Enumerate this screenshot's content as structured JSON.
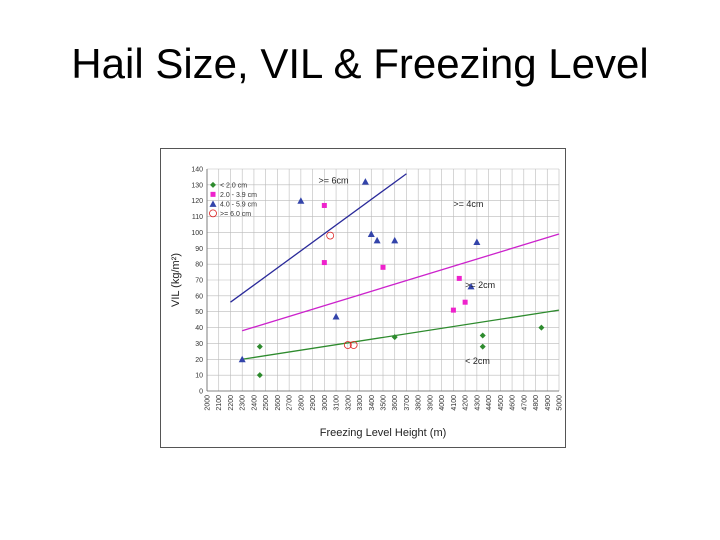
{
  "slide": {
    "title": "Hail Size, VIL & Freezing Level"
  },
  "chart_data": {
    "type": "scatter",
    "xlabel": "Freezing Level Height (m)",
    "ylabel": "VIL (kg/m²)",
    "xlim": [
      2000,
      5000
    ],
    "ylim": [
      0,
      140
    ],
    "xticks": [
      2000,
      2100,
      2200,
      2300,
      2400,
      2500,
      2600,
      2700,
      2800,
      2900,
      3000,
      3100,
      3200,
      3300,
      3400,
      3500,
      3600,
      3700,
      3800,
      3900,
      4000,
      4100,
      4200,
      4300,
      4400,
      4500,
      4600,
      4700,
      4800,
      4900,
      5000
    ],
    "yticks": [
      0,
      10,
      20,
      30,
      40,
      50,
      60,
      70,
      80,
      90,
      100,
      110,
      120,
      130,
      140
    ],
    "grid": true,
    "legend_position": "top-left",
    "series": [
      {
        "name": "< 2.0 cm",
        "marker": "diamond",
        "color": "#2e8b2e",
        "points": [
          [
            2450,
            28
          ],
          [
            2450,
            10
          ],
          [
            3600,
            34
          ],
          [
            4350,
            35
          ],
          [
            4350,
            28
          ],
          [
            4850,
            40
          ]
        ]
      },
      {
        "name": "2.0 - 3.9 cm",
        "marker": "square",
        "color": "#ee22cc",
        "points": [
          [
            3000,
            117
          ],
          [
            3000,
            81
          ],
          [
            3500,
            78
          ],
          [
            4100,
            51
          ],
          [
            4200,
            56
          ],
          [
            4150,
            71
          ]
        ]
      },
      {
        "name": "4.0 - 5.9 cm",
        "marker": "triangle",
        "color": "#3344aa",
        "points": [
          [
            2300,
            20
          ],
          [
            2800,
            120
          ],
          [
            3100,
            47
          ],
          [
            3350,
            132
          ],
          [
            3400,
            99
          ],
          [
            3450,
            95
          ],
          [
            3600,
            95
          ],
          [
            4250,
            66
          ],
          [
            4300,
            94
          ]
        ]
      },
      {
        "name": ">= 6.0 cm",
        "marker": "circle",
        "color": "#dd2222",
        "points": [
          [
            3050,
            98
          ],
          [
            3200,
            29
          ],
          [
            3250,
            29
          ]
        ]
      }
    ],
    "lines": [
      {
        "label": ">= 6cm",
        "color": "#2a2a9a",
        "from": [
          2200,
          56
        ],
        "to": [
          3700,
          137
        ]
      },
      {
        "label": ">= 4cm",
        "color": "#cc22cc",
        "from": [
          2300,
          38
        ],
        "to": [
          5000,
          99
        ]
      },
      {
        "label": ">= 2cm",
        "color": "#2e8b2e",
        "from": [
          2300,
          20
        ],
        "to": [
          5000,
          51
        ]
      },
      {
        "label": "< 2cm",
        "color": "#2e8b2e",
        "from": null,
        "to": null
      }
    ]
  }
}
